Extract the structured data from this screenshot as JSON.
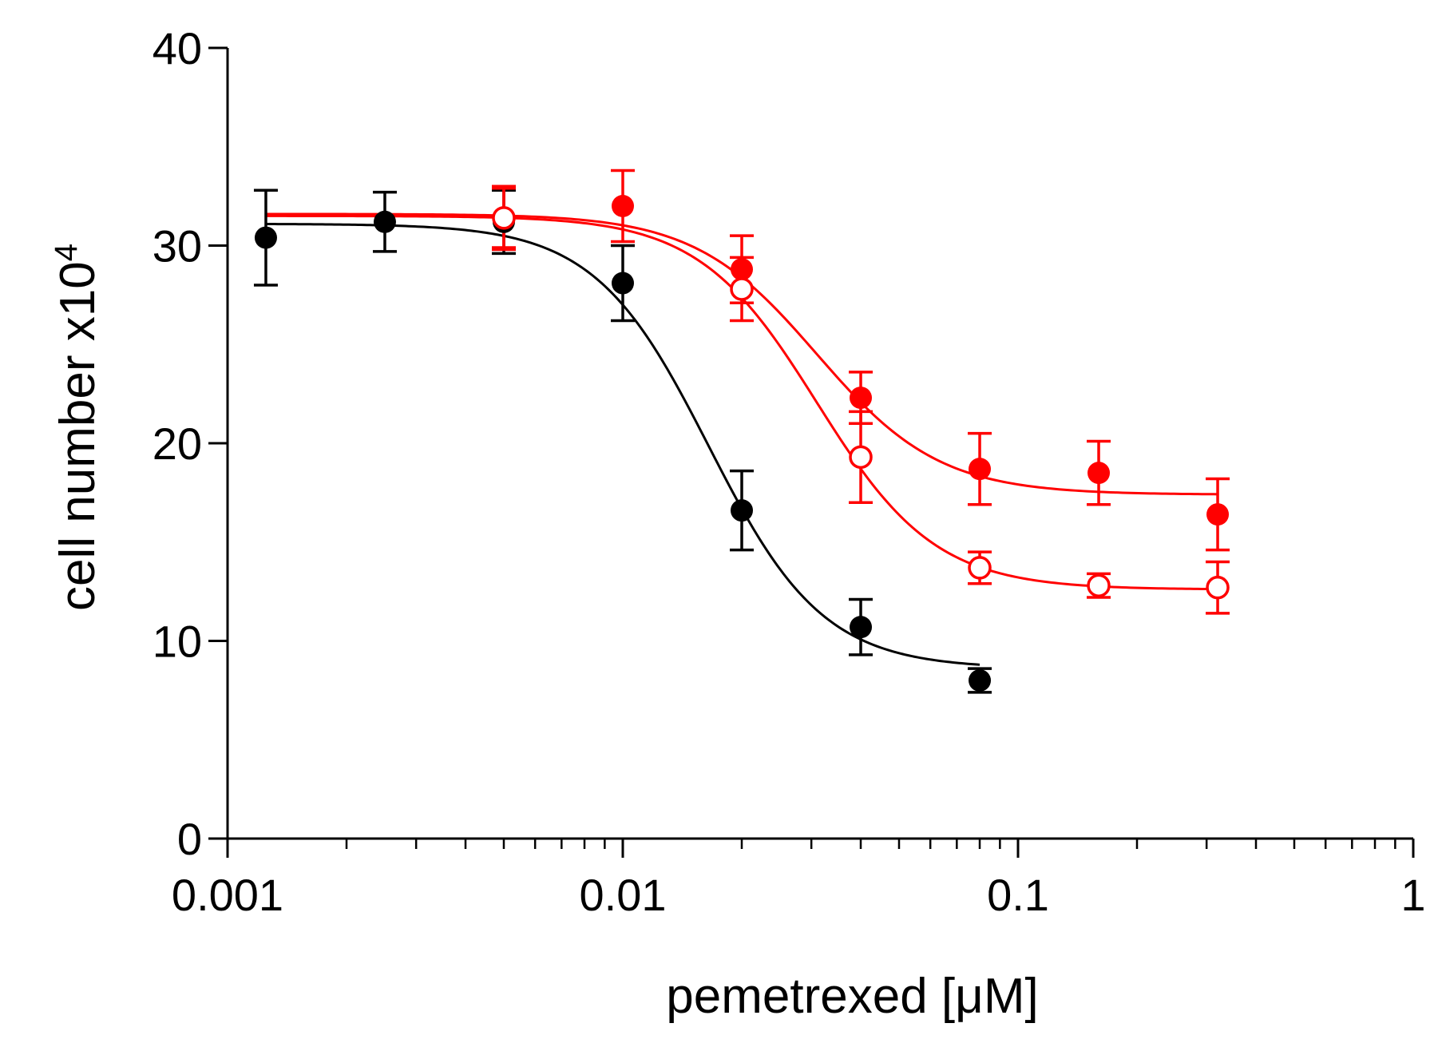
{
  "chart_data": {
    "type": "scatter",
    "title": "",
    "xlabel": "pemetrexed [μM]",
    "ylabel": "cell number x10",
    "ylabel_superscript": "4",
    "x_scale": "log",
    "xlim": [
      0.001,
      1
    ],
    "ylim": [
      0,
      40
    ],
    "x_ticks": [
      0.001,
      0.01,
      0.1,
      1
    ],
    "x_tick_labels": [
      "0.001",
      "0.01",
      "0.1",
      "1"
    ],
    "y_ticks": [
      0,
      10,
      20,
      30,
      40
    ],
    "y_tick_labels": [
      "0",
      "10",
      "20",
      "30",
      "40"
    ],
    "grid": false,
    "legend": "none",
    "series": [
      {
        "color": "#000000",
        "marker": "filled-circle",
        "x": [
          0.00125,
          0.0025,
          0.005,
          0.01,
          0.02,
          0.04,
          0.08
        ],
        "y": [
          30.4,
          31.2,
          31.2,
          28.1,
          16.6,
          10.7,
          8.0
        ],
        "error": [
          2.4,
          1.5,
          1.6,
          1.9,
          2.0,
          1.4,
          0.6
        ],
        "fit": {
          "top": 31.1,
          "bottom": 8.6,
          "ic50": 0.0165,
          "hill": 3.0,
          "x_range": [
            0.00125,
            0.08
          ]
        }
      },
      {
        "color": "#ff0000",
        "marker": "filled-circle",
        "x": [
          0.005,
          0.01,
          0.02,
          0.04,
          0.08,
          0.16,
          0.32
        ],
        "y": [
          31.4,
          32.0,
          28.8,
          22.3,
          18.7,
          18.5,
          16.4
        ],
        "error": [
          1.6,
          1.8,
          1.7,
          1.3,
          1.8,
          1.6,
          1.8
        ],
        "fit": {
          "top": 31.6,
          "bottom": 17.4,
          "ic50": 0.031,
          "hill": 2.8,
          "x_range": [
            0.00125,
            0.32
          ]
        }
      },
      {
        "color": "#ff0000",
        "marker": "open-circle",
        "x": [
          0.005,
          0.02,
          0.04,
          0.08,
          0.16,
          0.32
        ],
        "y": [
          31.4,
          27.8,
          19.3,
          13.7,
          12.8,
          12.7
        ],
        "error": [
          1.5,
          1.6,
          2.3,
          0.8,
          0.6,
          1.3
        ],
        "fit": {
          "top": 31.5,
          "bottom": 12.6,
          "ic50": 0.031,
          "hill": 2.9,
          "x_range": [
            0.00125,
            0.32
          ]
        }
      }
    ]
  }
}
